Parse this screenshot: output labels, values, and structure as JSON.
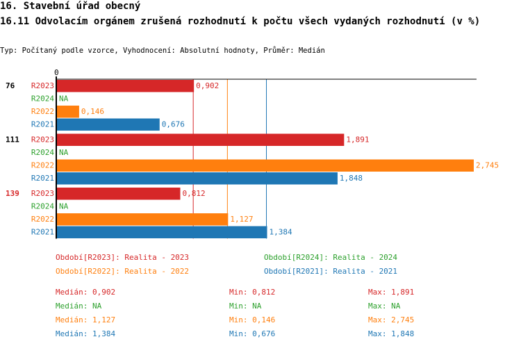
{
  "title": "16. Stavební úřad obecný",
  "subtitle": "16.11 Odvolacím orgánem zrušená rozhodnutí k počtu všech vydaných rozhodnutí (v %)",
  "description": "Typ: Počítaný podle vzorce, Vyhodnocení: Absolutní hodnoty, Průměr: Medián",
  "colors": {
    "R2023": "#d62728",
    "R2024": "#2ca02c",
    "R2022": "#ff7f0e",
    "R2021": "#1f77b4"
  },
  "chart_data": {
    "type": "bar",
    "orientation": "horizontal",
    "xlim": [
      0,
      2.745
    ],
    "x_tick_labels": [
      "0"
    ],
    "series_order": [
      "R2023",
      "R2024",
      "R2022",
      "R2021"
    ],
    "groups": [
      {
        "label": "76",
        "label_color": "#000000",
        "values": {
          "R2023": 0.902,
          "R2024": null,
          "R2022": 0.146,
          "R2021": 0.676
        },
        "texts": {
          "R2023": "0,902",
          "R2024": "NA",
          "R2022": "0,146",
          "R2021": "0,676"
        }
      },
      {
        "label": "111",
        "label_color": "#000000",
        "values": {
          "R2023": 1.891,
          "R2024": null,
          "R2022": 2.745,
          "R2021": 1.848
        },
        "texts": {
          "R2023": "1,891",
          "R2024": "NA",
          "R2022": "2,745",
          "R2021": "1,848"
        }
      },
      {
        "label": "139",
        "label_color": "#d62728",
        "values": {
          "R2023": 0.812,
          "R2024": null,
          "R2022": 1.127,
          "R2021": 1.384
        },
        "texts": {
          "R2023": "0,812",
          "R2024": "NA",
          "R2022": "1,127",
          "R2021": "1,384"
        }
      }
    ],
    "median_lines": {
      "R2023": 0.902,
      "R2022": 1.127,
      "R2021": 1.384
    },
    "legend": [
      {
        "series": "R2023",
        "text": "Období[R2023]: Realita - 2023"
      },
      {
        "series": "R2024",
        "text": "Období[R2024]: Realita - 2024"
      },
      {
        "series": "R2022",
        "text": "Období[R2022]: Realita - 2022"
      },
      {
        "series": "R2021",
        "text": "Období[R2021]: Realita - 2021"
      }
    ],
    "stats": [
      {
        "series": "R2023",
        "median": "Medián: 0,902",
        "min": "Min: 0,812",
        "max": "Max: 1,891"
      },
      {
        "series": "R2024",
        "median": "Medián: NA",
        "min": "Min: NA",
        "max": "Max: NA"
      },
      {
        "series": "R2022",
        "median": "Medián: 1,127",
        "min": "Min: 0,146",
        "max": "Max: 2,745"
      },
      {
        "series": "R2021",
        "median": "Medián: 1,384",
        "min": "Min: 0,676",
        "max": "Max: 1,848"
      }
    ]
  }
}
